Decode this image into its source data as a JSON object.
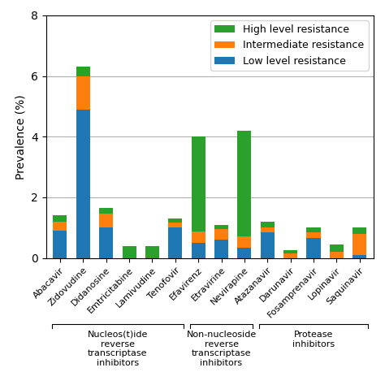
{
  "chart_data": {
    "type": "bar",
    "stacked": true,
    "categories": [
      "Abacavir",
      "Zidovudine",
      "Didanosine",
      "Emtricitabine",
      "Lamivudine",
      "Tenofovir",
      "Efavirenz",
      "Etravirine",
      "Nevirapine",
      "Atazanavir",
      "Darunavir",
      "Fosamprenavir",
      "Lopinavir",
      "Saquinavir"
    ],
    "series": [
      {
        "name": "Low level resistance",
        "values": [
          0.9,
          4.9,
          1.0,
          0.0,
          0.0,
          1.0,
          0.5,
          0.6,
          0.35,
          0.85,
          0.0,
          0.65,
          0.0,
          0.1
        ]
      },
      {
        "name": "Intermediate resistance",
        "values": [
          0.3,
          1.1,
          0.45,
          0.0,
          0.0,
          0.18,
          0.38,
          0.35,
          0.35,
          0.15,
          0.15,
          0.2,
          0.2,
          0.7
        ]
      },
      {
        "name": "High level resistance",
        "values": [
          0.22,
          0.32,
          0.2,
          0.4,
          0.4,
          0.12,
          3.12,
          0.15,
          3.5,
          0.2,
          0.1,
          0.15,
          0.25,
          0.2
        ]
      }
    ],
    "ylabel": "Prevalence (%)",
    "ylim": [
      0,
      8
    ],
    "yticks": [
      0,
      2,
      4,
      6,
      8
    ],
    "grid": true,
    "legend": "upper right",
    "annotations": [
      {
        "text": "Nucleos(t)ide\nreverse\ntranscriptase\ninhibitors",
        "from": "Abacavir",
        "to": "Tenofovir"
      },
      {
        "text": "Non-nucleoside\nreverse\ntranscriptase\ninhibitors",
        "from": "Efavirenz",
        "to": "Nevirapine"
      },
      {
        "text": "Protease\ninhibitors",
        "from": "Atazanavir",
        "to": "Saquinavir"
      }
    ]
  }
}
